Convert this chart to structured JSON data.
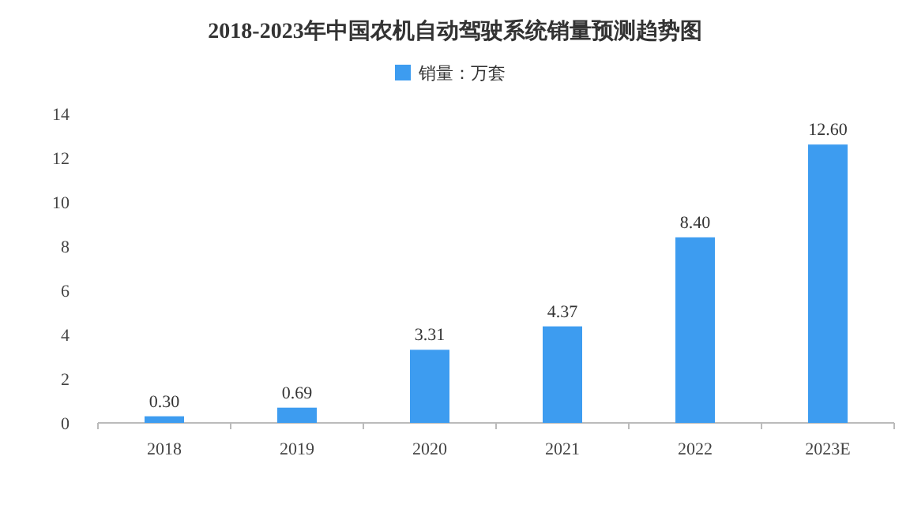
{
  "chart_data": {
    "type": "bar",
    "title": "2018-2023年中国农机自动驾驶系统销量预测趋势图",
    "categories": [
      "2018",
      "2019",
      "2020",
      "2021",
      "2022",
      "2023E"
    ],
    "series": [
      {
        "name": "销量：万套",
        "color": "#3d9cf0",
        "values": [
          0.3,
          0.69,
          3.31,
          4.37,
          8.4,
          12.6
        ]
      }
    ],
    "value_labels": [
      "0.30",
      "0.69",
      "3.31",
      "4.37",
      "8.40",
      "12.60"
    ],
    "ylim": [
      0,
      14
    ],
    "yticks": [
      0,
      2,
      4,
      6,
      8,
      10,
      12,
      14
    ],
    "legend": "top",
    "grid": false
  }
}
